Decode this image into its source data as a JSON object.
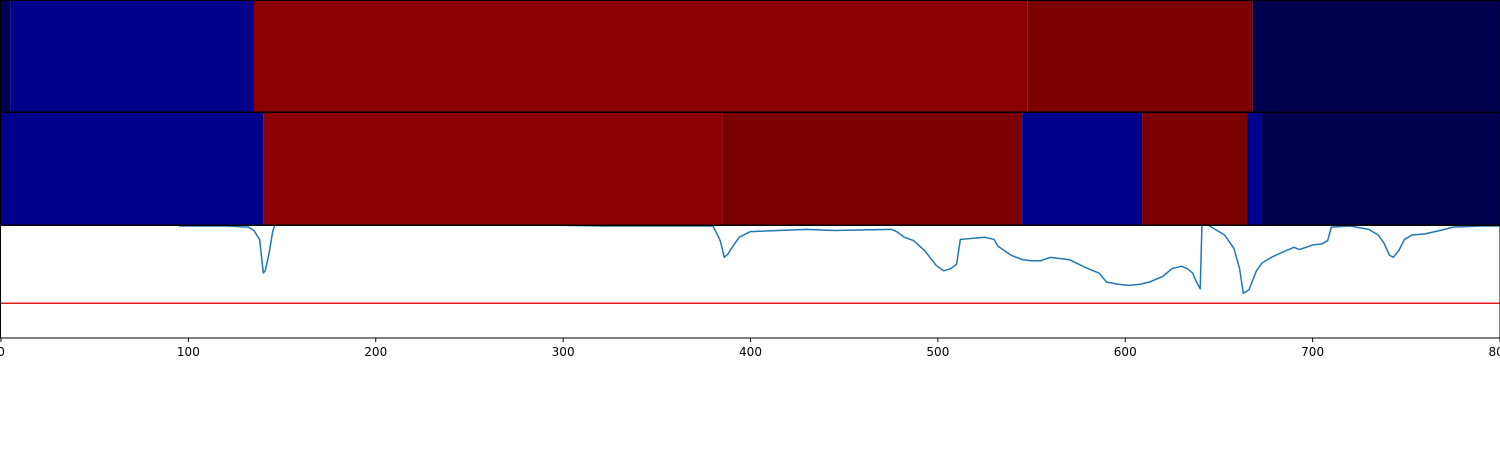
{
  "chart_data": {
    "type": "line",
    "title": "",
    "xlabel": "",
    "ylabel": "",
    "xlim": [
      0,
      800
    ],
    "x_ticks": [
      0,
      100,
      200,
      300,
      400,
      500,
      600,
      700,
      800
    ],
    "x_tick_labels": [
      "0",
      "100",
      "200",
      "300",
      "400",
      "500",
      "600",
      "700",
      "800"
    ],
    "grid": false,
    "legend": "none",
    "segment_tracks": [
      {
        "segments": [
          {
            "start": 0,
            "end": 5,
            "color": "#000055"
          },
          {
            "start": 5,
            "end": 135,
            "color": "#00008b"
          },
          {
            "start": 135,
            "end": 548,
            "color": "#8b0000"
          },
          {
            "start": 548,
            "end": 668,
            "color": "#7b0000"
          },
          {
            "start": 668,
            "end": 800,
            "color": "#00004f"
          }
        ]
      },
      {
        "segments": [
          {
            "start": 0,
            "end": 140,
            "color": "#00008b"
          },
          {
            "start": 140,
            "end": 385,
            "color": "#8b0000"
          },
          {
            "start": 385,
            "end": 545,
            "color": "#7b0000"
          },
          {
            "start": 545,
            "end": 609,
            "color": "#00008b"
          },
          {
            "start": 609,
            "end": 665,
            "color": "#7b0000"
          },
          {
            "start": 665,
            "end": 673,
            "color": "#00008b"
          },
          {
            "start": 673,
            "end": 800,
            "color": "#00004f"
          }
        ]
      }
    ],
    "line_panel": {
      "ylim": [
        0,
        1
      ],
      "threshold": 0.31,
      "threshold_color": "#e31a1c",
      "series": [
        {
          "color": "#1f77b4",
          "points": [
            [
              95,
              1.0
            ],
            [
              120,
              1.0
            ],
            [
              132,
              0.99
            ],
            [
              135,
              0.96
            ],
            [
              138,
              0.88
            ],
            [
              140,
              0.58
            ],
            [
              141,
              0.6
            ],
            [
              143,
              0.75
            ],
            [
              145,
              0.95
            ],
            [
              147,
              1.05
            ],
            [
              320,
              1.0
            ],
            [
              380,
              1.0
            ],
            [
              383,
              0.9
            ],
            [
              384,
              0.86
            ],
            [
              386,
              0.72
            ],
            [
              388,
              0.75
            ],
            [
              391,
              0.83
            ],
            [
              394,
              0.9
            ],
            [
              400,
              0.95
            ],
            [
              430,
              0.97
            ],
            [
              445,
              0.96
            ],
            [
              475,
              0.97
            ],
            [
              478,
              0.95
            ],
            [
              482,
              0.9
            ],
            [
              487,
              0.87
            ],
            [
              493,
              0.78
            ],
            [
              499,
              0.65
            ],
            [
              503,
              0.6
            ],
            [
              507,
              0.62
            ],
            [
              510,
              0.66
            ],
            [
              512,
              0.88
            ],
            [
              525,
              0.9
            ],
            [
              530,
              0.88
            ],
            [
              532,
              0.82
            ],
            [
              539,
              0.74
            ],
            [
              545,
              0.7
            ],
            [
              550,
              0.69
            ],
            [
              555,
              0.69
            ],
            [
              560,
              0.72
            ],
            [
              565,
              0.71
            ],
            [
              570,
              0.7
            ],
            [
              575,
              0.66
            ],
            [
              580,
              0.62
            ],
            [
              586,
              0.58
            ],
            [
              590,
              0.5
            ],
            [
              596,
              0.48
            ],
            [
              602,
              0.47
            ],
            [
              608,
              0.48
            ],
            [
              613,
              0.5
            ],
            [
              620,
              0.55
            ],
            [
              625,
              0.62
            ],
            [
              630,
              0.64
            ],
            [
              633,
              0.62
            ],
            [
              636,
              0.58
            ],
            [
              638,
              0.5
            ],
            [
              640,
              0.44
            ],
            [
              641,
              1.05
            ],
            [
              643,
              1.02
            ],
            [
              647,
              0.98
            ],
            [
              653,
              0.92
            ],
            [
              658,
              0.8
            ],
            [
              661,
              0.62
            ],
            [
              663,
              0.4
            ],
            [
              666,
              0.43
            ],
            [
              670,
              0.6
            ],
            [
              673,
              0.67
            ],
            [
              678,
              0.72
            ],
            [
              683,
              0.76
            ],
            [
              690,
              0.81
            ],
            [
              693,
              0.79
            ],
            [
              700,
              0.83
            ],
            [
              705,
              0.84
            ],
            [
              708,
              0.87
            ],
            [
              710,
              0.99
            ],
            [
              720,
              1.0
            ],
            [
              730,
              0.97
            ],
            [
              735,
              0.92
            ],
            [
              738,
              0.85
            ],
            [
              741,
              0.74
            ],
            [
              743,
              0.72
            ],
            [
              746,
              0.78
            ],
            [
              749,
              0.88
            ],
            [
              753,
              0.92
            ],
            [
              760,
              0.93
            ],
            [
              768,
              0.96
            ],
            [
              775,
              0.99
            ],
            [
              790,
              1.0
            ],
            [
              800,
              1.0
            ]
          ]
        }
      ]
    }
  }
}
